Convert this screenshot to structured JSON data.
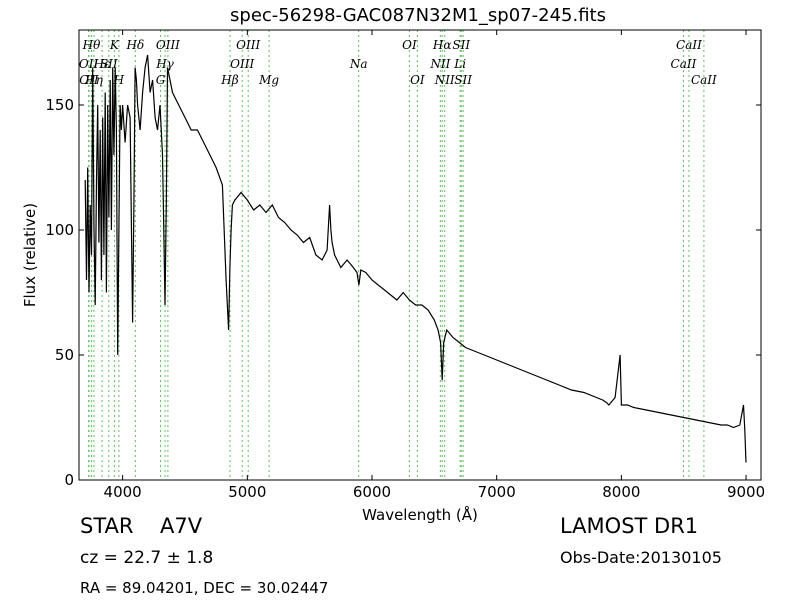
{
  "chart_data": {
    "type": "line",
    "title": "spec-56298-GAC087N32M1_sp07-245.fits",
    "xlabel": "Wavelength (Å)",
    "ylabel": "Flux (relative)",
    "xlim": [
      3650,
      9120
    ],
    "ylim": [
      0,
      180
    ],
    "xticks": [
      4000,
      5000,
      6000,
      7000,
      8000,
      9000
    ],
    "yticks": [
      0,
      50,
      100,
      150
    ],
    "grid": false,
    "series": [
      {
        "color": "#000000",
        "x": [
          3700,
          3710,
          3720,
          3730,
          3740,
          3750,
          3760,
          3770,
          3780,
          3790,
          3800,
          3810,
          3820,
          3830,
          3840,
          3850,
          3860,
          3870,
          3880,
          3890,
          3900,
          3910,
          3920,
          3930,
          3940,
          3950,
          3960,
          3970,
          3980,
          3990,
          4000,
          4020,
          4040,
          4060,
          4080,
          4090,
          4100,
          4110,
          4120,
          4140,
          4160,
          4180,
          4200,
          4220,
          4240,
          4260,
          4280,
          4300,
          4320,
          4330,
          4340,
          4350,
          4360,
          4380,
          4400,
          4450,
          4500,
          4550,
          4600,
          4650,
          4700,
          4750,
          4800,
          4830,
          4850,
          4860,
          4870,
          4880,
          4900,
          4950,
          5000,
          5050,
          5100,
          5150,
          5200,
          5250,
          5300,
          5350,
          5400,
          5450,
          5500,
          5550,
          5600,
          5640,
          5660,
          5670,
          5680,
          5700,
          5720,
          5750,
          5800,
          5850,
          5880,
          5895,
          5910,
          5950,
          6000,
          6050,
          6100,
          6150,
          6200,
          6250,
          6300,
          6350,
          6400,
          6450,
          6500,
          6530,
          6550,
          6563,
          6575,
          6600,
          6650,
          6700,
          6750,
          6800,
          6900,
          7000,
          7100,
          7200,
          7300,
          7400,
          7500,
          7600,
          7700,
          7800,
          7850,
          7880,
          7900,
          7950,
          7990,
          8000,
          8010,
          8050,
          8100,
          8200,
          8300,
          8400,
          8500,
          8600,
          8700,
          8800,
          8850,
          8900,
          8950,
          8980,
          8990,
          9000
        ],
        "y": [
          120,
          80,
          125,
          75,
          110,
          90,
          165,
          100,
          70,
          120,
          150,
          95,
          140,
          80,
          145,
          90,
          155,
          75,
          150,
          105,
          160,
          100,
          165,
          130,
          165,
          140,
          50,
          100,
          150,
          140,
          150,
          135,
          150,
          145,
          63,
          110,
          165,
          160,
          150,
          140,
          155,
          165,
          170,
          155,
          160,
          145,
          140,
          150,
          130,
          100,
          70,
          110,
          165,
          160,
          155,
          150,
          145,
          140,
          140,
          135,
          130,
          125,
          118,
          80,
          60,
          85,
          100,
          110,
          112,
          115,
          112,
          108,
          110,
          107,
          110,
          105,
          103,
          100,
          98,
          95,
          97,
          90,
          88,
          92,
          110,
          100,
          95,
          90,
          88,
          85,
          88,
          85,
          83,
          78,
          84,
          83,
          80,
          78,
          76,
          74,
          72,
          75,
          72,
          70,
          70,
          68,
          64,
          60,
          55,
          40,
          55,
          60,
          57,
          55,
          53,
          52,
          50,
          48,
          46,
          44,
          42,
          40,
          38,
          36,
          35,
          33,
          32,
          31,
          30,
          33,
          50,
          30,
          30,
          30,
          29,
          28,
          27,
          26,
          25,
          24,
          23,
          22,
          22,
          21,
          22,
          30,
          20,
          7
        ]
      }
    ],
    "line_ids": {
      "color": "#5fbf5f",
      "lines": [
        {
          "wavelength": 3727,
          "label": "OII",
          "row": 2
        },
        {
          "wavelength": 3730,
          "label": "OII",
          "row": 3
        },
        {
          "wavelength": 3750,
          "label": "Hθ",
          "row": 1
        },
        {
          "wavelength": 3770,
          "label": "Hη",
          "row": 3
        },
        {
          "wavelength": 3835,
          "label": "Hε",
          "row": 2
        },
        {
          "wavelength": 3889,
          "label": "SII",
          "row": 2
        },
        {
          "wavelength": 3934,
          "label": "K",
          "row": 1
        },
        {
          "wavelength": 3970,
          "label": "H",
          "row": 3
        },
        {
          "wavelength": 4102,
          "label": "Hδ",
          "row": 1
        },
        {
          "wavelength": 4304,
          "label": "G",
          "row": 3
        },
        {
          "wavelength": 4340,
          "label": "Hγ",
          "row": 2
        },
        {
          "wavelength": 4363,
          "label": "OIII",
          "row": 1
        },
        {
          "wavelength": 4861,
          "label": "Hβ",
          "row": 3
        },
        {
          "wavelength": 4959,
          "label": "OIII",
          "row": 2
        },
        {
          "wavelength": 5007,
          "label": "OIII",
          "row": 1
        },
        {
          "wavelength": 5175,
          "label": "Mg",
          "row": 3
        },
        {
          "wavelength": 5893,
          "label": "Na",
          "row": 2
        },
        {
          "wavelength": 6300,
          "label": "OI",
          "row": 1
        },
        {
          "wavelength": 6364,
          "label": "OI",
          "row": 3
        },
        {
          "wavelength": 6548,
          "label": "NII",
          "row": 2
        },
        {
          "wavelength": 6563,
          "label": "Hα",
          "row": 1
        },
        {
          "wavelength": 6583,
          "label": "NII",
          "row": 3
        },
        {
          "wavelength": 6707,
          "label": "Li",
          "row": 2
        },
        {
          "wavelength": 6716,
          "label": "SII",
          "row": 1
        },
        {
          "wavelength": 6731,
          "label": "SII",
          "row": 3
        },
        {
          "wavelength": 8498,
          "label": "CaII",
          "row": 2
        },
        {
          "wavelength": 8542,
          "label": "CaII",
          "row": 1
        },
        {
          "wavelength": 8662,
          "label": "CaII",
          "row": 3
        }
      ]
    }
  },
  "footer": {
    "class_label": "STAR",
    "subclass": "A7V",
    "redshift": "cz = 22.7 ± 1.8",
    "coords": "RA = 89.04201, DEC = 30.02447",
    "survey": "LAMOST DR1",
    "obs_date": "Obs-Date:20130105"
  }
}
